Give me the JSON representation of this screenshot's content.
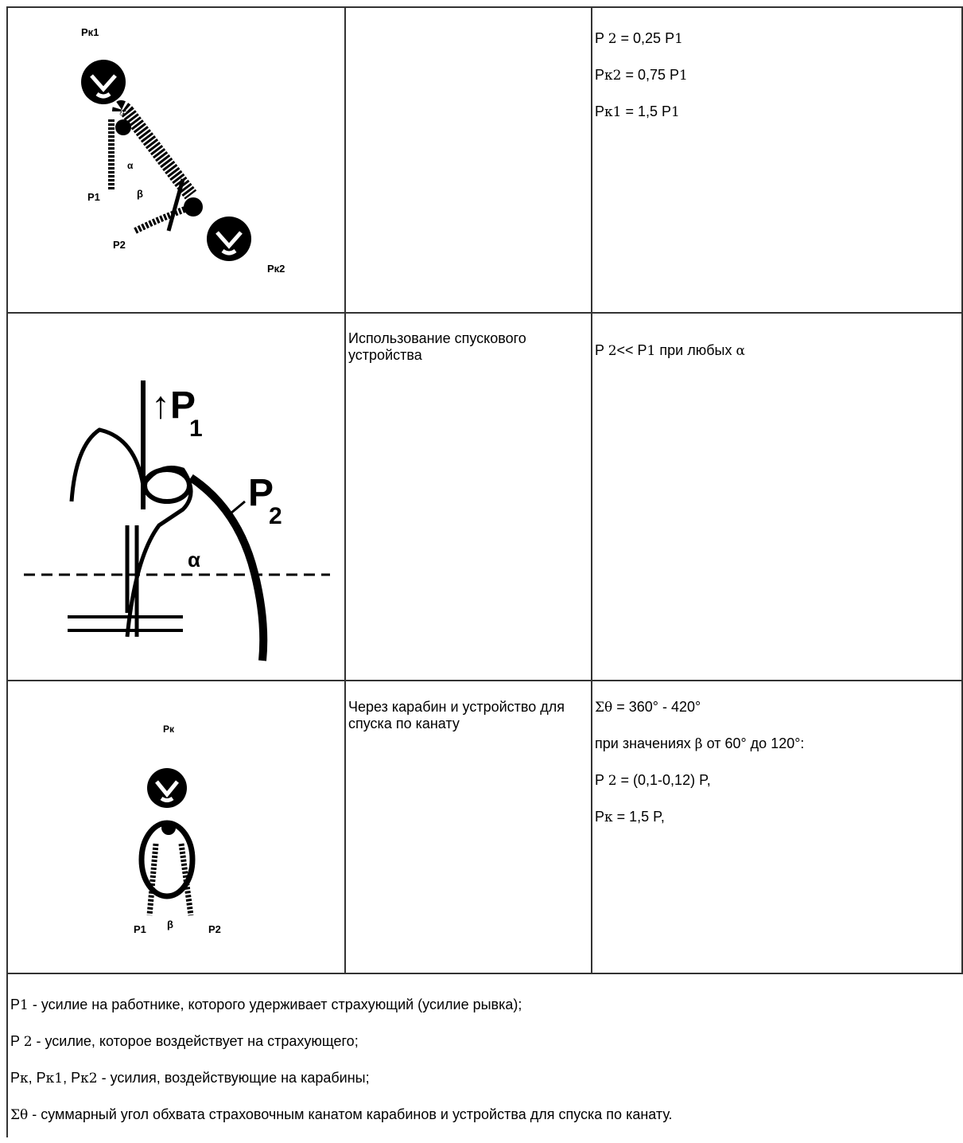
{
  "rows": [
    {
      "figure_labels": [
        "Pк1",
        "α",
        "P1",
        "β",
        "P2",
        "Pк2"
      ],
      "formula": [
        [
          {
            "t": "P "
          },
          {
            "s": "2"
          },
          {
            "t": " = 0,25 P"
          },
          {
            "s": "1"
          }
        ],
        [
          {
            "t": "P"
          },
          {
            "s": "к2"
          },
          {
            "t": " = 0,75 P"
          },
          {
            "s": "1"
          }
        ],
        [
          {
            "t": "P"
          },
          {
            "s": "к1"
          },
          {
            "t": " = 1,5 P"
          },
          {
            "s": "1"
          }
        ]
      ]
    },
    {
      "figure_labels": [
        "↑P",
        "1",
        "P",
        "2",
        "α"
      ],
      "description": "Использование спускового устройства",
      "formula": [
        [
          {
            "t": "P "
          },
          {
            "s": "2"
          },
          {
            "t": "<< P"
          },
          {
            "s": "1"
          },
          {
            "t": " при любых "
          },
          {
            "s": "α"
          }
        ]
      ]
    },
    {
      "figure_labels": [
        "Pк",
        "P1",
        "β",
        "P2"
      ],
      "description": "Через карабин и устройство для спуска по канату",
      "formula": [
        [
          {
            "s": "Σθ"
          },
          {
            "t": " = 360° - 420°"
          }
        ],
        [
          {
            "t": "при значениях "
          },
          {
            "s": "β"
          },
          {
            "t": " от 60° до 120°:"
          }
        ],
        [
          {
            "t": "P "
          },
          {
            "s": "2"
          },
          {
            "t": " = (0,1-0,12) P,"
          }
        ],
        [
          {
            "t": "P"
          },
          {
            "s": "к"
          },
          {
            "t": " = 1,5 P,"
          }
        ]
      ]
    }
  ],
  "legend": [
    [
      {
        "t": "P"
      },
      {
        "s": "1"
      },
      {
        "t": " - усилие на работнике, которого удерживает страхующий (усилие рывка);"
      }
    ],
    [
      {
        "t": "P "
      },
      {
        "s": "2"
      },
      {
        "t": " - усилие, которое воздействует на страхующего;"
      }
    ],
    [
      {
        "t": "P"
      },
      {
        "s": "к"
      },
      {
        "t": ", P"
      },
      {
        "s": "к1"
      },
      {
        "t": ", P"
      },
      {
        "s": "к2"
      },
      {
        "t": " - усилия, воздействующие на карабины;"
      }
    ],
    [
      {
        "s": "Σθ"
      },
      {
        "t": " - суммарный угол обхвата страховочным канатом карабинов и устройства для спуска по канату."
      }
    ]
  ]
}
